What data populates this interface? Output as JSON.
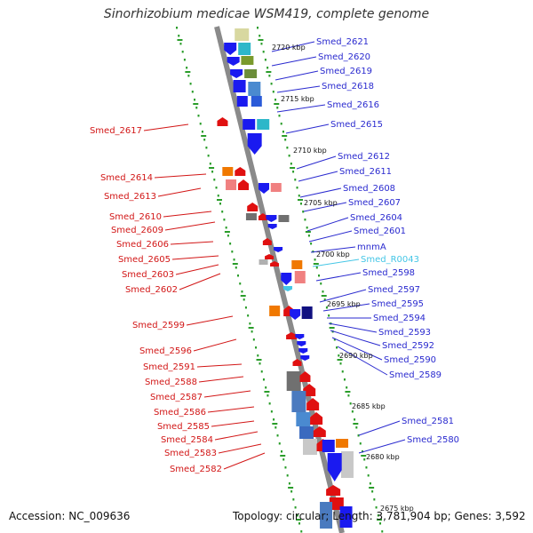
{
  "title": "Sinorhizobium medicae WSM419, complete genome",
  "accession": "Accession: NC_009636",
  "summary": "Topology: circular; Length: 3,781,904 bp; Genes: 3,592",
  "colors": {
    "plus_label": "#2a2acf",
    "minus_label": "#d21616",
    "rna_label": "#44c6e6",
    "axis": "#888888",
    "ticks": "#2a9d2a"
  },
  "kbp_marks": [
    "2720 kbp",
    "2715 kbp",
    "2710 kbp",
    "2705 kbp",
    "2700 kbp",
    "2695 kbp",
    "2690 kbp",
    "2685 kbp",
    "2680 kbp",
    "2675 kbp"
  ],
  "right_genes": [
    "Smed_2621",
    "Smed_2620",
    "Smed_2619",
    "Smed_2618",
    "Smed_2616",
    "Smed_2615",
    "Smed_2612",
    "Smed_2611",
    "Smed_2608",
    "Smed_2607",
    "Smed_2604",
    "Smed_2601",
    "mnmA",
    "Smed_R0043",
    "Smed_2598",
    "Smed_2597",
    "Smed_2595",
    "Smed_2594",
    "Smed_2593",
    "Smed_2592",
    "Smed_2590",
    "Smed_2589",
    "Smed_2581",
    "Smed_2580"
  ],
  "left_genes": [
    "Smed_2617",
    "Smed_2614",
    "Smed_2613",
    "Smed_2610",
    "Smed_2609",
    "Smed_2606",
    "Smed_2605",
    "Smed_2603",
    "Smed_2602",
    "Smed_2599",
    "Smed_2596",
    "Smed_2591",
    "Smed_2588",
    "Smed_2587",
    "Smed_2586",
    "Smed_2585",
    "Smed_2584",
    "Smed_2583",
    "Smed_2582"
  ]
}
